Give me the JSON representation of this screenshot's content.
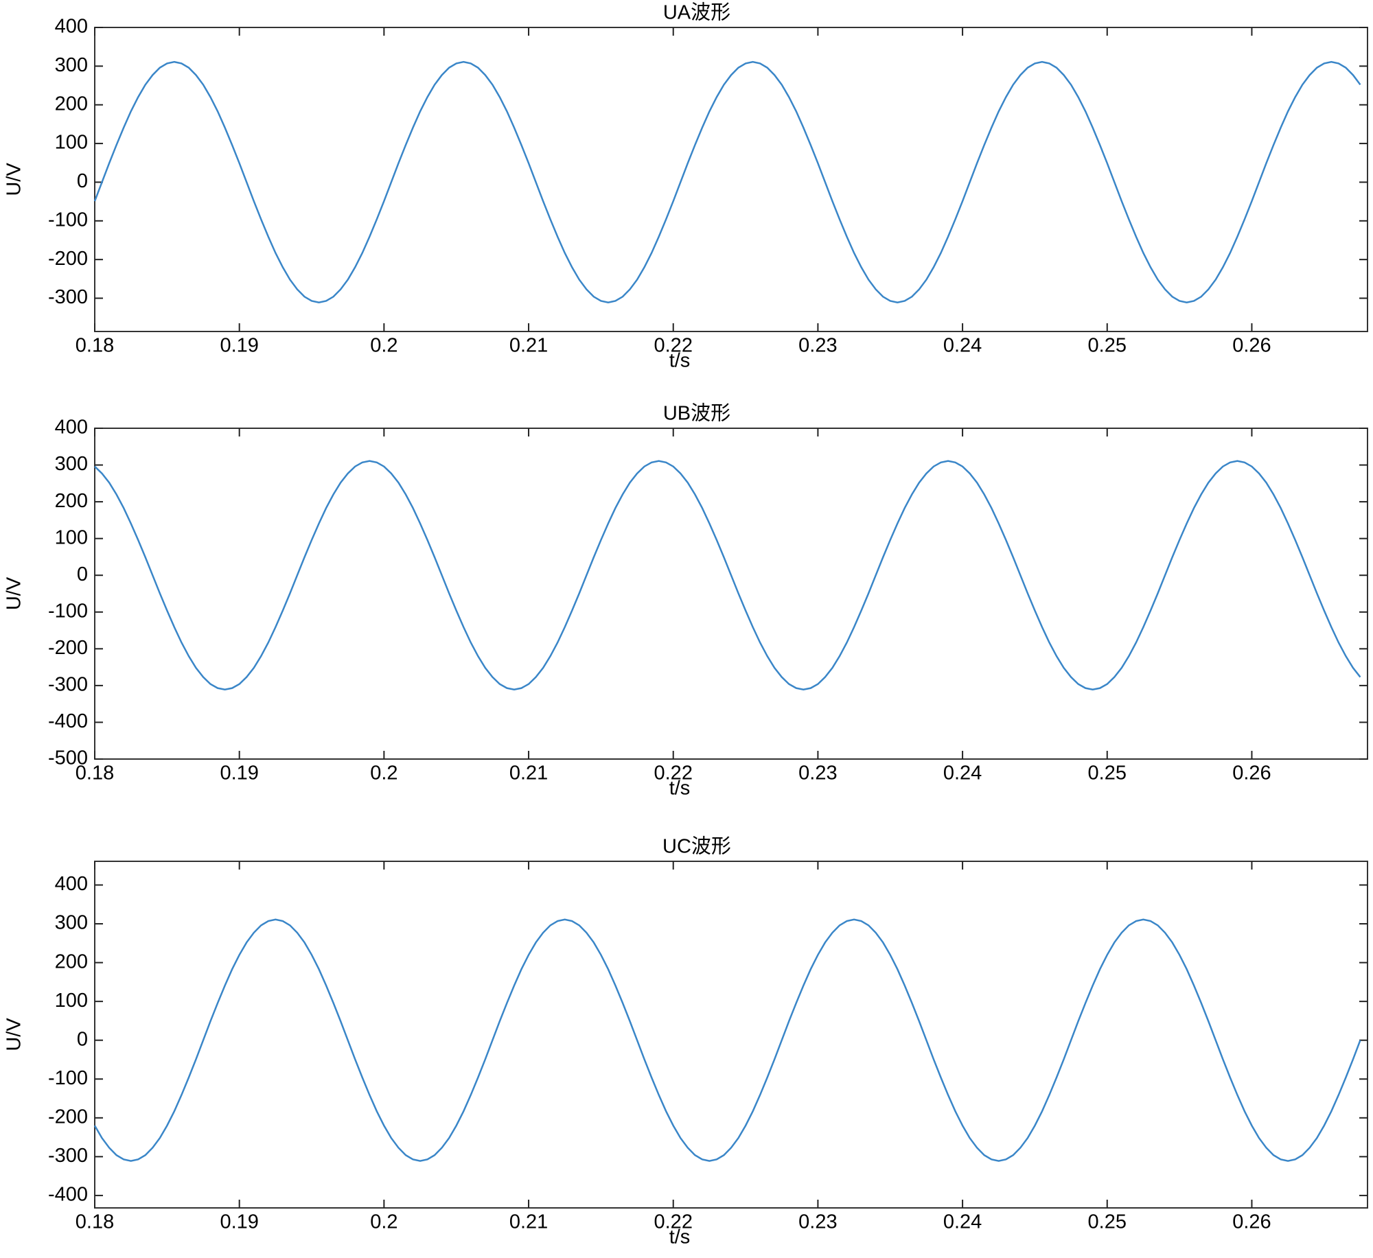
{
  "chart_data": [
    {
      "type": "line",
      "title": "UA波形",
      "xlabel": "t/s",
      "ylabel": "U/V",
      "color": "#3a86c8",
      "xlim": [
        0.18,
        0.268
      ],
      "xticks": [
        0.18,
        0.19,
        0.2,
        0.21,
        0.22,
        0.23,
        0.24,
        0.25,
        0.26
      ],
      "ylim": [
        -386,
        400
      ],
      "yticks": [
        -300,
        -200,
        -100,
        0,
        100,
        200,
        300,
        400
      ],
      "x": [
        0.18,
        0.1805,
        0.181,
        0.1815,
        0.182,
        0.1825,
        0.183,
        0.1835,
        0.184,
        0.1845,
        0.185,
        0.1855,
        0.186,
        0.1865,
        0.187,
        0.1875,
        0.188,
        0.1885,
        0.189,
        0.1895,
        0.19,
        0.1905,
        0.191,
        0.1915,
        0.192,
        0.1925,
        0.193,
        0.1935,
        0.194,
        0.1945,
        0.195,
        0.1955,
        0.196,
        0.1965,
        0.197,
        0.1975,
        0.198,
        0.1985,
        0.199,
        0.1995,
        0.2,
        0.2005,
        0.201,
        0.2015,
        0.202,
        0.2025,
        0.203,
        0.2035,
        0.204,
        0.2045,
        0.205,
        0.2055,
        0.206,
        0.2065,
        0.207,
        0.2075,
        0.208,
        0.2085,
        0.209,
        0.2095,
        0.21,
        0.2105,
        0.211,
        0.2115,
        0.212,
        0.2125,
        0.213,
        0.2135,
        0.214,
        0.2145,
        0.215,
        0.2155,
        0.216,
        0.2165,
        0.217,
        0.2175,
        0.218,
        0.2185,
        0.219,
        0.2195,
        0.22,
        0.2205,
        0.221,
        0.2215,
        0.222,
        0.2225,
        0.223,
        0.2235,
        0.224,
        0.2245,
        0.225,
        0.2255,
        0.226,
        0.2265,
        0.227,
        0.2275,
        0.228,
        0.2285,
        0.229,
        0.2295,
        0.23,
        0.2305,
        0.231,
        0.2315,
        0.232,
        0.2325,
        0.233,
        0.2335,
        0.234,
        0.2345,
        0.235,
        0.2355,
        0.236,
        0.2365,
        0.237,
        0.2375,
        0.238,
        0.2385,
        0.239,
        0.2395,
        0.24,
        0.2405,
        0.241,
        0.2415,
        0.242,
        0.2425,
        0.243,
        0.2435,
        0.244,
        0.2445,
        0.245,
        0.2455,
        0.246,
        0.2465,
        0.247,
        0.2475,
        0.248,
        0.2485,
        0.249,
        0.2495,
        0.25,
        0.2505,
        0.251,
        0.2515,
        0.252,
        0.2525,
        0.253,
        0.2535,
        0.254,
        0.2545,
        0.255,
        0.2555,
        0.256,
        0.2565,
        0.257,
        0.2575,
        0.258,
        0.2585,
        0.259,
        0.2595,
        0.26,
        0.2605,
        0.261,
        0.2615,
        0.262,
        0.2625,
        0.263,
        0.2635,
        0.264,
        0.2645,
        0.265,
        0.2655,
        0.266,
        0.2665,
        0.267,
        0.2675
      ],
      "values": [
        -49,
        0,
        49,
        96,
        141,
        183,
        220,
        252,
        277,
        296,
        307,
        311,
        307,
        296,
        277,
        252,
        220,
        183,
        141,
        96,
        49,
        0,
        -49,
        -96,
        -141,
        -183,
        -220,
        -252,
        -277,
        -296,
        -307,
        -311,
        -307,
        -296,
        -277,
        -252,
        -220,
        -183,
        -141,
        -96,
        -49,
        0,
        49,
        96,
        141,
        183,
        220,
        252,
        277,
        296,
        307,
        311,
        307,
        296,
        277,
        252,
        220,
        183,
        141,
        96,
        49,
        0,
        -49,
        -96,
        -141,
        -183,
        -220,
        -252,
        -277,
        -296,
        -307,
        -311,
        -307,
        -296,
        -277,
        -252,
        -220,
        -183,
        -141,
        -96,
        -49,
        0,
        49,
        96,
        141,
        183,
        220,
        252,
        277,
        296,
        307,
        311,
        307,
        296,
        277,
        252,
        220,
        183,
        141,
        96,
        49,
        0,
        -49,
        -96,
        -141,
        -183,
        -220,
        -252,
        -277,
        -296,
        -307,
        -311,
        -307,
        -296,
        -277,
        -252,
        -220,
        -183,
        -141,
        -96,
        -49,
        0,
        49,
        96,
        141,
        183,
        220,
        252,
        277,
        296,
        307,
        311,
        307,
        296,
        277,
        252,
        220,
        183,
        141,
        96,
        49,
        0,
        -49,
        -96,
        -141,
        -183,
        -220,
        -252,
        -277,
        -296,
        -307,
        -311,
        -307,
        -296,
        -277,
        -252,
        -220,
        -183,
        -141,
        -96,
        -49,
        0,
        49,
        96,
        141,
        183,
        220,
        252,
        277,
        296,
        307,
        311,
        307,
        296,
        277,
        252
      ]
    },
    {
      "type": "line",
      "title": "UB波形",
      "xlabel": "t/s",
      "ylabel": "U/V",
      "color": "#3a86c8",
      "xlim": [
        0.18,
        0.268
      ],
      "xticks": [
        0.18,
        0.19,
        0.2,
        0.21,
        0.22,
        0.23,
        0.24,
        0.25,
        0.26
      ],
      "ylim": [
        -500,
        400
      ],
      "yticks": [
        -500,
        -400,
        -300,
        -200,
        -100,
        0,
        100,
        200,
        300,
        400
      ],
      "x": [
        0.18,
        0.1805,
        0.181,
        0.1815,
        0.182,
        0.1825,
        0.183,
        0.1835,
        0.184,
        0.1845,
        0.185,
        0.1855,
        0.186,
        0.1865,
        0.187,
        0.1875,
        0.188,
        0.1885,
        0.189,
        0.1895,
        0.19,
        0.1905,
        0.191,
        0.1915,
        0.192,
        0.1925,
        0.193,
        0.1935,
        0.194,
        0.1945,
        0.195,
        0.1955,
        0.196,
        0.1965,
        0.197,
        0.1975,
        0.198,
        0.1985,
        0.199,
        0.1995,
        0.2,
        0.2005,
        0.201,
        0.2015,
        0.202,
        0.2025,
        0.203,
        0.2035,
        0.204,
        0.2045,
        0.205,
        0.2055,
        0.206,
        0.2065,
        0.207,
        0.2075,
        0.208,
        0.2085,
        0.209,
        0.2095,
        0.21,
        0.2105,
        0.211,
        0.2115,
        0.212,
        0.2125,
        0.213,
        0.2135,
        0.214,
        0.2145,
        0.215,
        0.2155,
        0.216,
        0.2165,
        0.217,
        0.2175,
        0.218,
        0.2185,
        0.219,
        0.2195,
        0.22,
        0.2205,
        0.221,
        0.2215,
        0.222,
        0.2225,
        0.223,
        0.2235,
        0.224,
        0.2245,
        0.225,
        0.2255,
        0.226,
        0.2265,
        0.227,
        0.2275,
        0.228,
        0.2285,
        0.229,
        0.2295,
        0.23,
        0.2305,
        0.231,
        0.2315,
        0.232,
        0.2325,
        0.233,
        0.2335,
        0.234,
        0.2345,
        0.235,
        0.2355,
        0.236,
        0.2365,
        0.237,
        0.2375,
        0.238,
        0.2385,
        0.239,
        0.2395,
        0.24,
        0.2405,
        0.241,
        0.2415,
        0.242,
        0.2425,
        0.243,
        0.2435,
        0.244,
        0.2445,
        0.245,
        0.2455,
        0.246,
        0.2465,
        0.247,
        0.2475,
        0.248,
        0.2485,
        0.249,
        0.2495,
        0.25,
        0.2505,
        0.251,
        0.2515,
        0.252,
        0.2525,
        0.253,
        0.2535,
        0.254,
        0.2545,
        0.255,
        0.2555,
        0.256,
        0.2565,
        0.257,
        0.2575,
        0.258,
        0.2585,
        0.259,
        0.2595,
        0.26,
        0.2605,
        0.261,
        0.2615,
        0.262,
        0.2625,
        0.263,
        0.2635,
        0.264,
        0.2645,
        0.265,
        0.2655,
        0.266,
        0.2665,
        0.267,
        0.2675
      ],
      "values": [
        296,
        277,
        252,
        220,
        183,
        141,
        96,
        49,
        0,
        -49,
        -96,
        -141,
        -183,
        -220,
        -252,
        -277,
        -296,
        -307,
        -311,
        -307,
        -296,
        -277,
        -252,
        -220,
        -183,
        -141,
        -96,
        -49,
        0,
        49,
        96,
        141,
        183,
        220,
        252,
        277,
        296,
        307,
        311,
        307,
        296,
        277,
        252,
        220,
        183,
        141,
        96,
        49,
        0,
        -49,
        -96,
        -141,
        -183,
        -220,
        -252,
        -277,
        -296,
        -307,
        -311,
        -307,
        -296,
        -277,
        -252,
        -220,
        -183,
        -141,
        -96,
        -49,
        0,
        49,
        96,
        141,
        183,
        220,
        252,
        277,
        296,
        307,
        311,
        307,
        296,
        277,
        252,
        220,
        183,
        141,
        96,
        49,
        0,
        -49,
        -96,
        -141,
        -183,
        -220,
        -252,
        -277,
        -296,
        -307,
        -311,
        -307,
        -296,
        -277,
        -252,
        -220,
        -183,
        -141,
        -96,
        -49,
        0,
        49,
        96,
        141,
        183,
        220,
        252,
        277,
        296,
        307,
        311,
        307,
        296,
        277,
        252,
        220,
        183,
        141,
        96,
        49,
        0,
        -49,
        -96,
        -141,
        -183,
        -220,
        -252,
        -277,
        -296,
        -307,
        -311,
        -307,
        -296,
        -277,
        -252,
        -220,
        -183,
        -141,
        -96,
        -49,
        0,
        49,
        96,
        141,
        183,
        220,
        252,
        277,
        296,
        307,
        311,
        307,
        296,
        277,
        252,
        220,
        183,
        141,
        96,
        49,
        0,
        -49,
        -96,
        -141,
        -183,
        -220,
        -252,
        -277
      ]
    },
    {
      "type": "line",
      "title": "UC波形",
      "xlabel": "t/s",
      "ylabel": "U/V",
      "color": "#3a86c8",
      "xlim": [
        0.18,
        0.268
      ],
      "xticks": [
        0.18,
        0.19,
        0.2,
        0.21,
        0.22,
        0.23,
        0.24,
        0.25,
        0.26
      ],
      "ylim": [
        -432,
        461
      ],
      "yticks": [
        -400,
        -300,
        -200,
        -100,
        0,
        100,
        200,
        300,
        400
      ],
      "x": [
        0.18,
        0.1805,
        0.181,
        0.1815,
        0.182,
        0.1825,
        0.183,
        0.1835,
        0.184,
        0.1845,
        0.185,
        0.1855,
        0.186,
        0.1865,
        0.187,
        0.1875,
        0.188,
        0.1885,
        0.189,
        0.1895,
        0.19,
        0.1905,
        0.191,
        0.1915,
        0.192,
        0.1925,
        0.193,
        0.1935,
        0.194,
        0.1945,
        0.195,
        0.1955,
        0.196,
        0.1965,
        0.197,
        0.1975,
        0.198,
        0.1985,
        0.199,
        0.1995,
        0.2,
        0.2005,
        0.201,
        0.2015,
        0.202,
        0.2025,
        0.203,
        0.2035,
        0.204,
        0.2045,
        0.205,
        0.2055,
        0.206,
        0.2065,
        0.207,
        0.2075,
        0.208,
        0.2085,
        0.209,
        0.2095,
        0.21,
        0.2105,
        0.211,
        0.2115,
        0.212,
        0.2125,
        0.213,
        0.2135,
        0.214,
        0.2145,
        0.215,
        0.2155,
        0.216,
        0.2165,
        0.217,
        0.2175,
        0.218,
        0.2185,
        0.219,
        0.2195,
        0.22,
        0.2205,
        0.221,
        0.2215,
        0.222,
        0.2225,
        0.223,
        0.2235,
        0.224,
        0.2245,
        0.225,
        0.2255,
        0.226,
        0.2265,
        0.227,
        0.2275,
        0.228,
        0.2285,
        0.229,
        0.2295,
        0.23,
        0.2305,
        0.231,
        0.2315,
        0.232,
        0.2325,
        0.233,
        0.2335,
        0.234,
        0.2345,
        0.235,
        0.2355,
        0.236,
        0.2365,
        0.237,
        0.2375,
        0.238,
        0.2385,
        0.239,
        0.2395,
        0.24,
        0.2405,
        0.241,
        0.2415,
        0.242,
        0.2425,
        0.243,
        0.2435,
        0.244,
        0.2445,
        0.245,
        0.2455,
        0.246,
        0.2465,
        0.247,
        0.2475,
        0.248,
        0.2485,
        0.249,
        0.2495,
        0.25,
        0.2505,
        0.251,
        0.2515,
        0.252,
        0.2525,
        0.253,
        0.2535,
        0.254,
        0.2545,
        0.255,
        0.2555,
        0.256,
        0.2565,
        0.257,
        0.2575,
        0.258,
        0.2585,
        0.259,
        0.2595,
        0.26,
        0.2605,
        0.261,
        0.2615,
        0.262,
        0.2625,
        0.263,
        0.2635,
        0.264,
        0.2645,
        0.265,
        0.2655,
        0.266,
        0.2665,
        0.267,
        0.2675
      ],
      "values": [
        -220,
        -252,
        -277,
        -296,
        -307,
        -311,
        -307,
        -296,
        -277,
        -252,
        -220,
        -183,
        -141,
        -96,
        -49,
        0,
        49,
        96,
        141,
        183,
        220,
        252,
        277,
        296,
        307,
        311,
        307,
        296,
        277,
        252,
        220,
        183,
        141,
        96,
        49,
        0,
        -49,
        -96,
        -141,
        -183,
        -220,
        -252,
        -277,
        -296,
        -307,
        -311,
        -307,
        -296,
        -277,
        -252,
        -220,
        -183,
        -141,
        -96,
        -49,
        0,
        49,
        96,
        141,
        183,
        220,
        252,
        277,
        296,
        307,
        311,
        307,
        296,
        277,
        252,
        220,
        183,
        141,
        96,
        49,
        0,
        -49,
        -96,
        -141,
        -183,
        -220,
        -252,
        -277,
        -296,
        -307,
        -311,
        -307,
        -296,
        -277,
        -252,
        -220,
        -183,
        -141,
        -96,
        -49,
        0,
        49,
        96,
        141,
        183,
        220,
        252,
        277,
        296,
        307,
        311,
        307,
        296,
        277,
        252,
        220,
        183,
        141,
        96,
        49,
        0,
        -49,
        -96,
        -141,
        -183,
        -220,
        -252,
        -277,
        -296,
        -307,
        -311,
        -307,
        -296,
        -277,
        -252,
        -220,
        -183,
        -141,
        -96,
        -49,
        0,
        49,
        96,
        141,
        183,
        220,
        252,
        277,
        296,
        307,
        311,
        307,
        296,
        277,
        252,
        220,
        183,
        141,
        96,
        49,
        0,
        -49,
        -96,
        -141,
        -183,
        -220,
        -252,
        -277,
        -296,
        -307,
        -311,
        -307,
        -296,
        -277,
        -252,
        -220,
        -183,
        -141,
        -96,
        -49,
        0
      ]
    }
  ]
}
